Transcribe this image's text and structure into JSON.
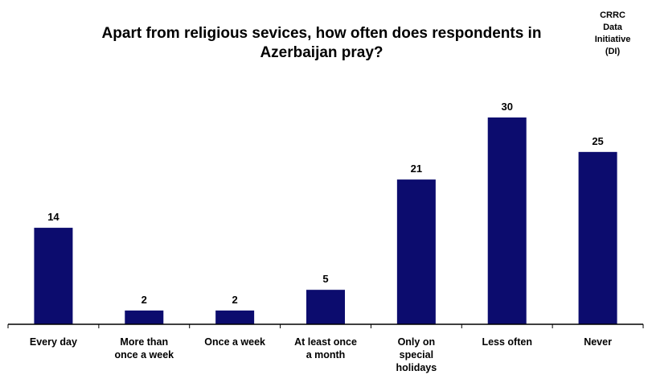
{
  "chart_data": {
    "type": "bar",
    "title_lines": [
      "Apart from religious sevices, how often does respondents in",
      "Azerbaijan pray?"
    ],
    "watermark_lines": [
      "CRRC",
      "Data",
      "Initiative",
      "(DI)"
    ],
    "categories": [
      [
        "Every day"
      ],
      [
        "More than",
        "once a week"
      ],
      [
        "Once a week"
      ],
      [
        "At least once",
        "a month"
      ],
      [
        "Only on",
        "special",
        "holidays"
      ],
      [
        "Less often"
      ],
      [
        "Never"
      ]
    ],
    "values": [
      14,
      2,
      2,
      5,
      21,
      30,
      25
    ],
    "data_labels": [
      "14",
      "2",
      "2",
      "5",
      "21",
      "30",
      "25"
    ],
    "ylim": [
      0,
      30
    ],
    "grid": false,
    "legend": "none",
    "bar_color": "#0c0c6e",
    "axis_color": "#000000"
  }
}
